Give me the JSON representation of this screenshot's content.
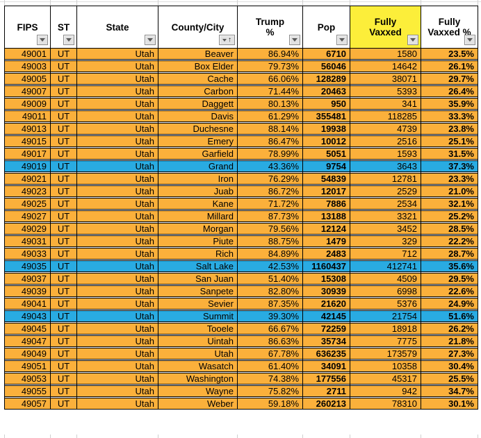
{
  "table": {
    "columns": [
      {
        "id": "fips",
        "label": "FIPS"
      },
      {
        "id": "st",
        "label": "ST"
      },
      {
        "id": "state",
        "label": "State"
      },
      {
        "id": "county",
        "label": "County/City",
        "sorted": "ascending"
      },
      {
        "id": "trump_pct",
        "label": "Trump\n%"
      },
      {
        "id": "pop",
        "label": "Pop"
      },
      {
        "id": "fully_vaxxed",
        "label": "Fully\nVaxxed",
        "header_highlight": true
      },
      {
        "id": "fully_vaxxed_pct",
        "label": "Fully\nVaxxed %"
      }
    ],
    "rows": [
      {
        "highlight": false,
        "cells": [
          "49001",
          "UT",
          "Utah",
          "Beaver",
          "86.94%",
          "6710",
          "1580",
          "23.5%"
        ]
      },
      {
        "highlight": false,
        "cells": [
          "49003",
          "UT",
          "Utah",
          "Box Elder",
          "79.73%",
          "56046",
          "14642",
          "26.1%"
        ]
      },
      {
        "highlight": false,
        "cells": [
          "49005",
          "UT",
          "Utah",
          "Cache",
          "66.06%",
          "128289",
          "38071",
          "29.7%"
        ]
      },
      {
        "highlight": false,
        "cells": [
          "49007",
          "UT",
          "Utah",
          "Carbon",
          "71.44%",
          "20463",
          "5393",
          "26.4%"
        ]
      },
      {
        "highlight": false,
        "cells": [
          "49009",
          "UT",
          "Utah",
          "Daggett",
          "80.13%",
          "950",
          "341",
          "35.9%"
        ]
      },
      {
        "highlight": false,
        "cells": [
          "49011",
          "UT",
          "Utah",
          "Davis",
          "61.29%",
          "355481",
          "118285",
          "33.3%"
        ]
      },
      {
        "highlight": false,
        "cells": [
          "49013",
          "UT",
          "Utah",
          "Duchesne",
          "88.14%",
          "19938",
          "4739",
          "23.8%"
        ]
      },
      {
        "highlight": false,
        "cells": [
          "49015",
          "UT",
          "Utah",
          "Emery",
          "86.47%",
          "10012",
          "2516",
          "25.1%"
        ]
      },
      {
        "highlight": false,
        "cells": [
          "49017",
          "UT",
          "Utah",
          "Garfield",
          "78.99%",
          "5051",
          "1593",
          "31.5%"
        ]
      },
      {
        "highlight": true,
        "cells": [
          "49019",
          "UT",
          "Utah",
          "Grand",
          "43.36%",
          "9754",
          "3643",
          "37.3%"
        ]
      },
      {
        "highlight": false,
        "cells": [
          "49021",
          "UT",
          "Utah",
          "Iron",
          "76.29%",
          "54839",
          "12781",
          "23.3%"
        ]
      },
      {
        "highlight": false,
        "cells": [
          "49023",
          "UT",
          "Utah",
          "Juab",
          "86.72%",
          "12017",
          "2529",
          "21.0%"
        ]
      },
      {
        "highlight": false,
        "cells": [
          "49025",
          "UT",
          "Utah",
          "Kane",
          "71.72%",
          "7886",
          "2534",
          "32.1%"
        ]
      },
      {
        "highlight": false,
        "cells": [
          "49027",
          "UT",
          "Utah",
          "Millard",
          "87.73%",
          "13188",
          "3321",
          "25.2%"
        ]
      },
      {
        "highlight": false,
        "cells": [
          "49029",
          "UT",
          "Utah",
          "Morgan",
          "79.56%",
          "12124",
          "3452",
          "28.5%"
        ]
      },
      {
        "highlight": false,
        "cells": [
          "49031",
          "UT",
          "Utah",
          "Piute",
          "88.75%",
          "1479",
          "329",
          "22.2%"
        ]
      },
      {
        "highlight": false,
        "cells": [
          "49033",
          "UT",
          "Utah",
          "Rich",
          "84.89%",
          "2483",
          "712",
          "28.7%"
        ]
      },
      {
        "highlight": true,
        "cells": [
          "49035",
          "UT",
          "Utah",
          "Salt Lake",
          "42.53%",
          "1160437",
          "412741",
          "35.6%"
        ]
      },
      {
        "highlight": false,
        "cells": [
          "49037",
          "UT",
          "Utah",
          "San Juan",
          "51.40%",
          "15308",
          "4509",
          "29.5%"
        ]
      },
      {
        "highlight": false,
        "cells": [
          "49039",
          "UT",
          "Utah",
          "Sanpete",
          "82.80%",
          "30939",
          "6998",
          "22.6%"
        ]
      },
      {
        "highlight": false,
        "cells": [
          "49041",
          "UT",
          "Utah",
          "Sevier",
          "87.35%",
          "21620",
          "5376",
          "24.9%"
        ]
      },
      {
        "highlight": true,
        "cells": [
          "49043",
          "UT",
          "Utah",
          "Summit",
          "39.30%",
          "42145",
          "21754",
          "51.6%"
        ]
      },
      {
        "highlight": false,
        "cells": [
          "49045",
          "UT",
          "Utah",
          "Tooele",
          "66.67%",
          "72259",
          "18918",
          "26.2%"
        ]
      },
      {
        "highlight": false,
        "cells": [
          "49047",
          "UT",
          "Utah",
          "Uintah",
          "86.63%",
          "35734",
          "7775",
          "21.8%"
        ]
      },
      {
        "highlight": false,
        "cells": [
          "49049",
          "UT",
          "Utah",
          "Utah",
          "67.78%",
          "636235",
          "173579",
          "27.3%"
        ]
      },
      {
        "highlight": false,
        "cells": [
          "49051",
          "UT",
          "Utah",
          "Wasatch",
          "61.40%",
          "34091",
          "10358",
          "30.4%"
        ]
      },
      {
        "highlight": false,
        "cells": [
          "49053",
          "UT",
          "Utah",
          "Washington",
          "74.38%",
          "177556",
          "45317",
          "25.5%"
        ]
      },
      {
        "highlight": false,
        "cells": [
          "49055",
          "UT",
          "Utah",
          "Wayne",
          "75.82%",
          "2711",
          "942",
          "34.7%"
        ]
      },
      {
        "highlight": false,
        "cells": [
          "49057",
          "UT",
          "Utah",
          "Weber",
          "59.18%",
          "260213",
          "78310",
          "30.1%"
        ]
      }
    ]
  },
  "icons": {
    "filter_dropdown": "filter-dropdown-icon",
    "sort_ascending_arrow": "sort-ascending-icon"
  },
  "colors": {
    "row_orange": "#FBB03B",
    "row_blue": "#29ABE2",
    "header_yellow": "#FCEE3A",
    "border_black": "#000000",
    "gridline_gray": "#CFCFCF"
  }
}
